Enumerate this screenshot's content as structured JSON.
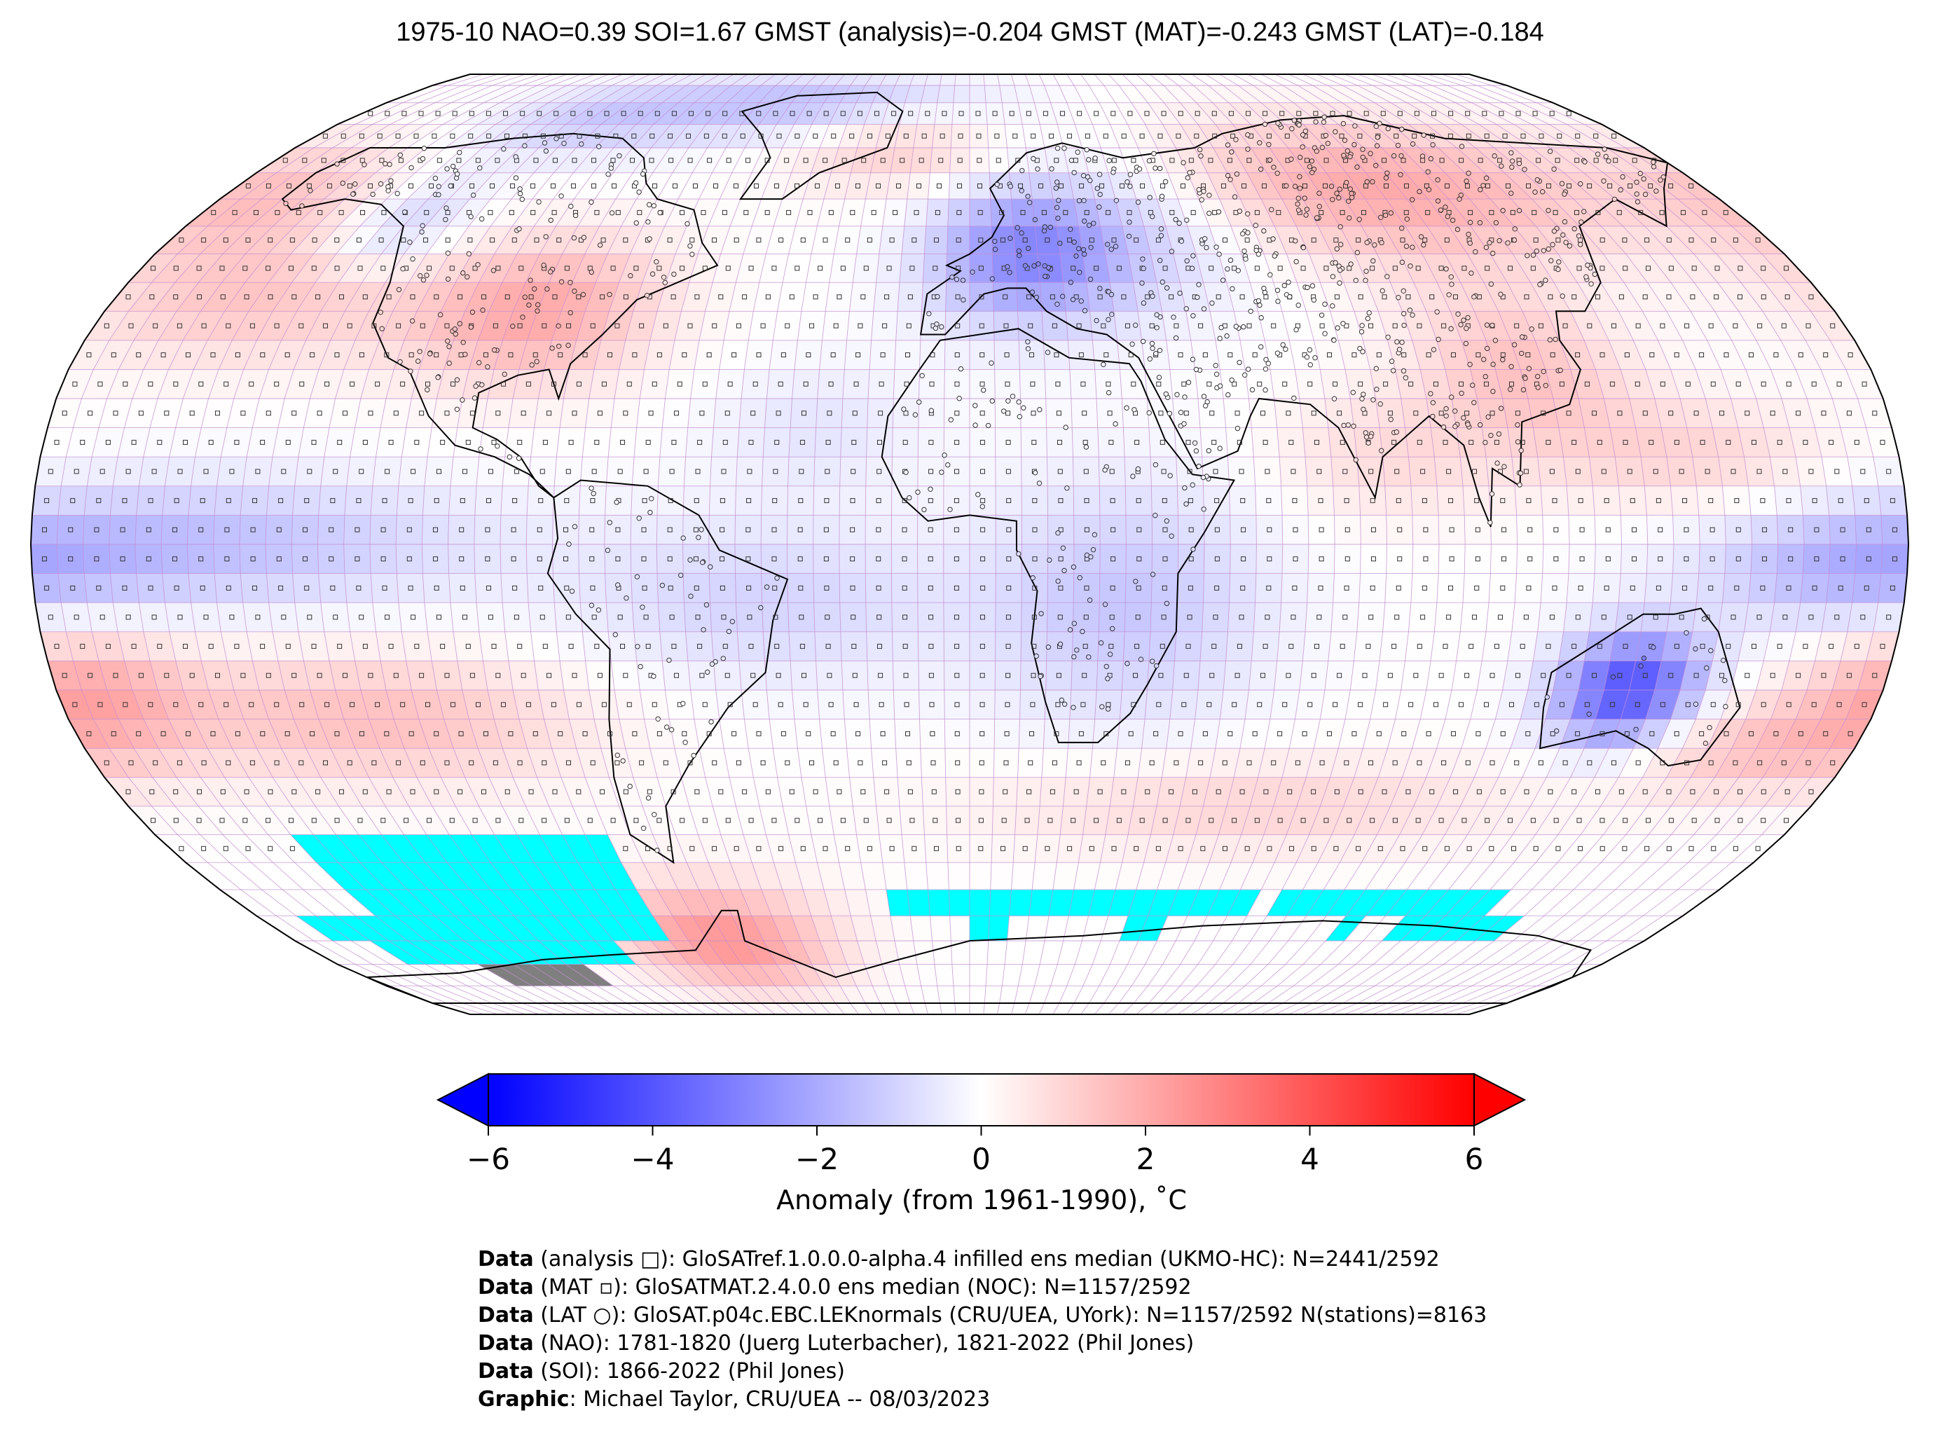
{
  "title": "1975-10 NAO=0.39 SOI=1.67 GMST (analysis)=-0.204 GMST (MAT)=-0.243 GMST (LAT)=-0.184",
  "map": {
    "projection": "Robinson",
    "legend_placement": "bottom-center",
    "colors": {
      "cold_extreme": "#0000ff",
      "neutral": "#ffffff",
      "warm_extreme": "#ff0000",
      "missing_sea_ice": "#00ffff",
      "missing_land": "#7f7f7f",
      "grid_lines": "#c38fd0",
      "coastline": "#000000"
    },
    "regions": [
      {
        "name": "North America interior",
        "anomaly": 2.0
      },
      {
        "name": "North Pacific",
        "anomaly": 1.2
      },
      {
        "name": "Europe",
        "anomaly": -2.5
      },
      {
        "name": "Siberia",
        "anomaly": 2.0
      },
      {
        "name": "China",
        "anomaly": 1.5
      },
      {
        "name": "Tropical Pacific",
        "anomaly": -1.5
      },
      {
        "name": "Australia",
        "anomaly": -4.0
      },
      {
        "name": "Antarctic Peninsula",
        "anomaly": 2.5
      }
    ]
  },
  "chart_data": {
    "type": "heatmap",
    "title": "1975-10 NAO=0.39 SOI=1.67 GMST (analysis)=-0.204 GMST (MAT)=-0.243 GMST (LAT)=-0.184",
    "colorbar": {
      "label": "Anomaly (from 1961-1990), ˚C",
      "range": [
        -6,
        6
      ],
      "ticks": [
        -6,
        -4,
        -2,
        0,
        2,
        4,
        6
      ],
      "tick_labels": [
        "−6",
        "−4",
        "−2",
        "0",
        "2",
        "4",
        "6"
      ],
      "extend": "both",
      "colormap": "bwr"
    },
    "grid_resolution_deg": 5
  },
  "credits": [
    {
      "bold": "Data",
      "text": " (analysis □): GloSATref.1.0.0.0-alpha.4 infilled ens median (UKMO-HC): N=2441/2592"
    },
    {
      "bold": "Data",
      "text": " (MAT ▫): GloSATMAT.2.4.0.0 ens median (NOC): N=1157/2592"
    },
    {
      "bold": "Data",
      "text": " (LAT ○): GloSAT.p04c.EBC.LEKnormals (CRU/UEA, UYork): N=1157/2592 N(stations)=8163"
    },
    {
      "bold": "Data",
      "text": " (NAO): 1781-1820 (Juerg Luterbacher), 1821-2022 (Phil Jones)"
    },
    {
      "bold": "Data",
      "text": " (SOI): 1866-2022 (Phil Jones)"
    },
    {
      "bold": "Graphic",
      "text": ": Michael Taylor, CRU/UEA -- 08/03/2023"
    }
  ]
}
